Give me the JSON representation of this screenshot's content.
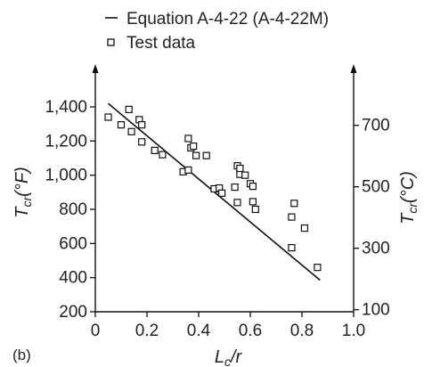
{
  "chart_data": {
    "type": "scatter",
    "panel_label": "(b)",
    "legend": {
      "placement": "top",
      "entries": [
        {
          "label": "Equation A-4-22 (A-4-22M)",
          "marker": "line"
        },
        {
          "label": "Test data",
          "marker": "open-square"
        }
      ]
    },
    "xlabel_main": "L",
    "xlabel_sub": "c",
    "xlabel_tail": "/r",
    "ylabel_left_main": "T",
    "ylabel_left_sub": "cr",
    "ylabel_left_unit": "(°F)",
    "ylabel_right_main": "T",
    "ylabel_right_sub": "cr",
    "ylabel_right_unit": "(°C)",
    "xlim": [
      0,
      1.0
    ],
    "ylim_left": [
      200,
      1500
    ],
    "ylim_right_celsius_ticks": [
      100,
      300,
      500,
      700
    ],
    "x_ticks": [
      "0",
      "0.2",
      "0.4",
      "0.6",
      "0.8",
      "1.0"
    ],
    "x_tick_values": [
      0,
      0.2,
      0.4,
      0.6,
      0.8,
      1.0
    ],
    "y_left_ticks": [
      "200",
      "400",
      "600",
      "800",
      "1,000",
      "1,200",
      "1,400"
    ],
    "y_left_tick_values": [
      200,
      400,
      600,
      800,
      1000,
      1200,
      1400
    ],
    "y_right_ticks": [
      "100",
      "300",
      "500",
      "700"
    ],
    "equation_line": {
      "x": [
        0.05,
        0.87
      ],
      "y": [
        1420,
        385
      ]
    },
    "series": [
      {
        "name": "Test data",
        "points": [
          [
            0.05,
            1340
          ],
          [
            0.1,
            1295
          ],
          [
            0.13,
            1385
          ],
          [
            0.14,
            1255
          ],
          [
            0.17,
            1325
          ],
          [
            0.18,
            1295
          ],
          [
            0.18,
            1195
          ],
          [
            0.23,
            1145
          ],
          [
            0.26,
            1120
          ],
          [
            0.34,
            1020
          ],
          [
            0.36,
            1030
          ],
          [
            0.36,
            1215
          ],
          [
            0.37,
            1160
          ],
          [
            0.38,
            1170
          ],
          [
            0.39,
            1115
          ],
          [
            0.43,
            1115
          ],
          [
            0.46,
            920
          ],
          [
            0.48,
            925
          ],
          [
            0.49,
            895
          ],
          [
            0.54,
            930
          ],
          [
            0.55,
            1055
          ],
          [
            0.55,
            840
          ],
          [
            0.56,
            1005
          ],
          [
            0.56,
            1040
          ],
          [
            0.58,
            1000
          ],
          [
            0.6,
            950
          ],
          [
            0.61,
            935
          ],
          [
            0.61,
            845
          ],
          [
            0.62,
            800
          ],
          [
            0.76,
            755
          ],
          [
            0.76,
            575
          ],
          [
            0.77,
            835
          ],
          [
            0.81,
            690
          ],
          [
            0.86,
            460
          ]
        ]
      }
    ],
    "grid": false
  }
}
